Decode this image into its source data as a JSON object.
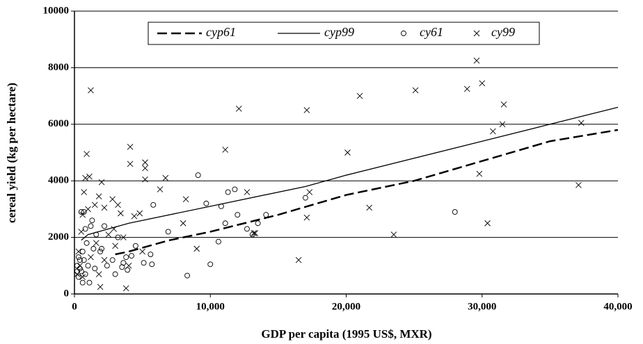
{
  "chart_data": {
    "type": "scatter",
    "xlabel": "GDP per capita (1995 US$, MXR)",
    "ylabel": "cereal yield (kg per hectare)",
    "xlim": [
      0,
      40000
    ],
    "xticks": [
      0,
      {
        "value": 10000,
        "label": "10,000"
      },
      {
        "value": 20000,
        "label": "20,000"
      },
      {
        "value": 30000,
        "label": "30,000"
      },
      {
        "value": 40000,
        "label": "40,000"
      }
    ],
    "ylim": [
      0,
      10000
    ],
    "yticks": [
      0,
      2000,
      4000,
      6000,
      8000,
      10000
    ],
    "grid": true,
    "legend": "upper center",
    "series": [
      {
        "name": "cyp61",
        "kind": "line",
        "style": "dashed",
        "color": "#000000",
        "x": [
          3000,
          4000,
          7000,
          10000,
          15000,
          20000,
          25000,
          30000,
          35000,
          40000
        ],
        "values": [
          1400,
          1500,
          1900,
          2200,
          2800,
          3500,
          4000,
          4700,
          5400,
          5800
        ]
      },
      {
        "name": "cyp99",
        "kind": "line",
        "style": "solid",
        "color": "#000000",
        "x": [
          500,
          1000,
          4000,
          10000,
          17000,
          20000,
          30000,
          35000,
          40000
        ],
        "values": [
          1900,
          2100,
          2500,
          3100,
          3800,
          4200,
          5400,
          6000,
          6600
        ]
      },
      {
        "name": "cy61",
        "kind": "circle",
        "color": "#000000",
        "x": [
          9100,
          11300,
          11800,
          10800,
          9700,
          11100,
          12000,
          13500,
          14100,
          10600,
          10000,
          8300,
          5700,
          5600,
          5100,
          4200,
          6900,
          5800,
          17000,
          28000,
          3800,
          3500,
          3900,
          4500,
          2200,
          2800,
          1900,
          1600,
          1400,
          1000,
          800,
          600,
          400,
          300,
          200,
          500,
          700,
          1300,
          2000,
          3200,
          300,
          500,
          700,
          900,
          1200,
          400,
          200,
          600,
          800,
          1100,
          1500,
          2400,
          3000,
          3600,
          13100,
          12700
        ],
        "values": [
          4200,
          3600,
          3700,
          3100,
          3200,
          2500,
          2800,
          2500,
          2800,
          1850,
          1050,
          650,
          1050,
          1400,
          1100,
          1350,
          2200,
          3150,
          3400,
          2900,
          1300,
          950,
          850,
          1700,
          2400,
          1200,
          1500,
          2100,
          1600,
          1000,
          700,
          400,
          900,
          1300,
          1000,
          2900,
          2900,
          2600,
          1600,
          2000,
          600,
          800,
          1200,
          1800,
          2400,
          1200,
          800,
          1500,
          2300,
          400,
          900,
          1000,
          700,
          1100,
          2100,
          2300
        ]
      },
      {
        "name": "cy99",
        "kind": "x",
        "color": "#000000",
        "x": [
          1200,
          4100,
          4100,
          5200,
          5200,
          5200,
          6700,
          6300,
          8200,
          8000,
          9000,
          11100,
          12100,
          12700,
          13200,
          13300,
          16500,
          17100,
          17100,
          17300,
          20100,
          21000,
          21700,
          23500,
          25100,
          28900,
          29600,
          29800,
          30000,
          30400,
          30800,
          31500,
          31600,
          37100,
          37300,
          3800,
          1900,
          900,
          800,
          1100,
          1500,
          2000,
          1800,
          2200,
          2800,
          3200,
          3400,
          3600,
          4400,
          4800,
          5000,
          2500,
          2900,
          3000,
          500,
          600,
          700,
          1000,
          300,
          400,
          200,
          600,
          1200,
          1600,
          1800,
          2200,
          4000
        ],
        "values": [
          7200,
          5200,
          4600,
          4650,
          4450,
          4050,
          4100,
          3700,
          3350,
          2500,
          1600,
          5100,
          6550,
          3600,
          2150,
          2150,
          1200,
          6500,
          2700,
          3600,
          5000,
          7000,
          3050,
          2100,
          7200,
          7250,
          8250,
          4250,
          7450,
          2500,
          5750,
          6000,
          6700,
          3850,
          6050,
          200,
          250,
          4950,
          4100,
          4150,
          3150,
          3950,
          3450,
          3050,
          3350,
          3150,
          2850,
          2000,
          2750,
          2850,
          1500,
          2100,
          2300,
          1700,
          2200,
          2800,
          3600,
          3000,
          1500,
          1000,
          700,
          600,
          1300,
          1800,
          700,
          1200,
          1000
        ]
      }
    ]
  }
}
